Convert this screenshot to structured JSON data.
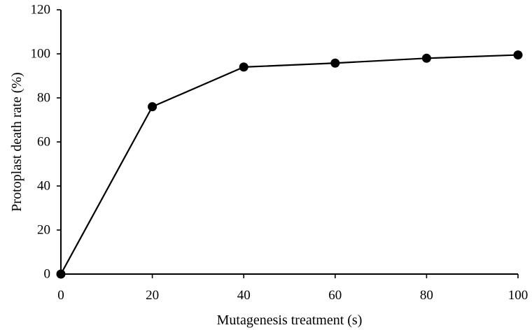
{
  "chart_data": {
    "type": "line",
    "title": "",
    "xlabel": "Mutagenesis treatment (s)",
    "ylabel": "Protoplast death rate (%)",
    "x": [
      0,
      20,
      40,
      60,
      80,
      100
    ],
    "series": [
      {
        "name": "Protoplast death rate",
        "values": [
          0,
          76,
          94,
          95.8,
          98,
          99.5
        ]
      }
    ],
    "xlim": [
      0,
      100
    ],
    "ylim": [
      0,
      120
    ],
    "xticks": [
      0,
      20,
      40,
      60,
      80,
      100
    ],
    "yticks": [
      0,
      20,
      40,
      60,
      80,
      100,
      120
    ],
    "grid": false,
    "legend": "none",
    "colors": {
      "line": "#000000",
      "marker": "#000000",
      "axis": "#000000"
    }
  }
}
